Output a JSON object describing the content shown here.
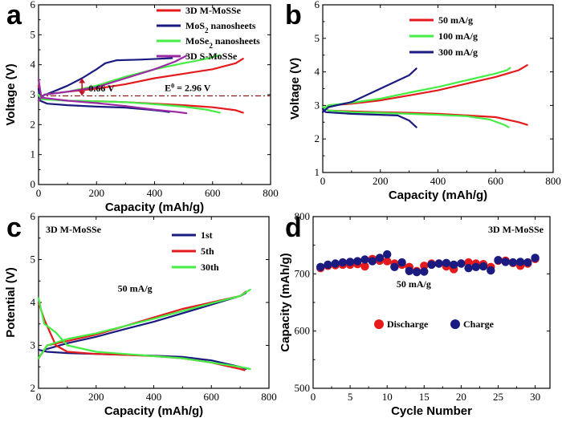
{
  "colors": {
    "red": "#e41a1c",
    "navy": "#1a1a80",
    "green": "#44ee44",
    "purple": "#9b2aa4",
    "refline": "#8b1a1a",
    "arrow": "#c0142b"
  },
  "chart_data": [
    {
      "panel": "a",
      "type": "line",
      "xlabel": "Capacity (mAh/g)",
      "ylabel": "Voltage (V)",
      "xlim": [
        0,
        800
      ],
      "ylim": [
        0,
        6
      ],
      "xticks": [
        0,
        200,
        400,
        600,
        800
      ],
      "yticks": [
        0,
        1,
        2,
        3,
        4,
        5,
        6
      ],
      "legend_position": "top-right",
      "annotations": {
        "gap_label": "0.66 V",
        "e0_label": "E",
        "e0_sup": "0",
        "e0_value": " = 2.96 V",
        "e0_value_v": 2.96
      },
      "series": [
        {
          "name": "3D M-MoSSe",
          "color": "red",
          "charge": [
            [
              0,
              2.8
            ],
            [
              20,
              3.0
            ],
            [
              100,
              3.1
            ],
            [
              200,
              3.2
            ],
            [
              300,
              3.35
            ],
            [
              400,
              3.55
            ],
            [
              500,
              3.7
            ],
            [
              600,
              3.85
            ],
            [
              680,
              4.05
            ],
            [
              705,
              4.2
            ]
          ],
          "discharge": [
            [
              0,
              3.3
            ],
            [
              5,
              2.95
            ],
            [
              30,
              2.85
            ],
            [
              100,
              2.8
            ],
            [
              200,
              2.78
            ],
            [
              300,
              2.75
            ],
            [
              400,
              2.7
            ],
            [
              500,
              2.65
            ],
            [
              600,
              2.58
            ],
            [
              680,
              2.48
            ],
            [
              705,
              2.4
            ]
          ]
        },
        {
          "name_main": "MoS",
          "name_sub": "2",
          "name_rest": " nanosheets",
          "color": "navy",
          "charge": [
            [
              0,
              2.8
            ],
            [
              10,
              2.95
            ],
            [
              50,
              3.1
            ],
            [
              100,
              3.3
            ],
            [
              150,
              3.55
            ],
            [
              200,
              3.85
            ],
            [
              230,
              4.05
            ],
            [
              270,
              4.15
            ],
            [
              350,
              4.17
            ],
            [
              420,
              4.2
            ],
            [
              460,
              4.22
            ]
          ],
          "discharge": [
            [
              0,
              3.2
            ],
            [
              5,
              2.8
            ],
            [
              30,
              2.7
            ],
            [
              100,
              2.65
            ],
            [
              200,
              2.6
            ],
            [
              300,
              2.57
            ],
            [
              380,
              2.5
            ],
            [
              430,
              2.45
            ],
            [
              450,
              2.42
            ]
          ]
        },
        {
          "name_main": "MoSe",
          "name_sub": "2",
          "name_rest": " nanosheets",
          "color": "green",
          "charge": [
            [
              0,
              2.8
            ],
            [
              20,
              3.0
            ],
            [
              100,
              3.1
            ],
            [
              200,
              3.3
            ],
            [
              300,
              3.6
            ],
            [
              400,
              3.85
            ],
            [
              500,
              4.05
            ],
            [
              580,
              4.2
            ],
            [
              625,
              4.32
            ]
          ],
          "discharge": [
            [
              0,
              3.0
            ],
            [
              10,
              2.85
            ],
            [
              100,
              2.8
            ],
            [
              200,
              2.78
            ],
            [
              300,
              2.75
            ],
            [
              400,
              2.68
            ],
            [
              500,
              2.6
            ],
            [
              580,
              2.5
            ],
            [
              625,
              2.4
            ]
          ]
        },
        {
          "name": "3D S-MoSSe",
          "color": "purple",
          "charge": [
            [
              0,
              2.8
            ],
            [
              20,
              3.0
            ],
            [
              100,
              3.1
            ],
            [
              200,
              3.25
            ],
            [
              300,
              3.55
            ],
            [
              400,
              3.85
            ],
            [
              470,
              4.1
            ],
            [
              510,
              4.3
            ]
          ],
          "discharge": [
            [
              0,
              3.5
            ],
            [
              10,
              2.9
            ],
            [
              100,
              2.8
            ],
            [
              200,
              2.72
            ],
            [
              300,
              2.62
            ],
            [
              400,
              2.5
            ],
            [
              480,
              2.42
            ],
            [
              510,
              2.38
            ]
          ]
        }
      ]
    },
    {
      "panel": "b",
      "type": "line",
      "xlabel": "Capacity (mAh/g)",
      "ylabel": "Voltage (V)",
      "xlim": [
        0,
        800
      ],
      "ylim": [
        1,
        6
      ],
      "xticks": [
        0,
        200,
        400,
        600,
        800
      ],
      "yticks": [
        1,
        2,
        3,
        4,
        5,
        6
      ],
      "legend_position": "top-right",
      "series": [
        {
          "name": "50 mA/g",
          "color": "red",
          "charge": [
            [
              0,
              2.9
            ],
            [
              20,
              3.0
            ],
            [
              100,
              3.05
            ],
            [
              200,
              3.15
            ],
            [
              300,
              3.3
            ],
            [
              400,
              3.45
            ],
            [
              500,
              3.65
            ],
            [
              600,
              3.85
            ],
            [
              680,
              4.05
            ],
            [
              710,
              4.2
            ]
          ],
          "discharge": [
            [
              0,
              2.95
            ],
            [
              20,
              2.85
            ],
            [
              100,
              2.82
            ],
            [
              200,
              2.8
            ],
            [
              300,
              2.78
            ],
            [
              400,
              2.75
            ],
            [
              500,
              2.7
            ],
            [
              600,
              2.65
            ],
            [
              680,
              2.5
            ],
            [
              710,
              2.42
            ]
          ]
        },
        {
          "name": "100 mA/g",
          "color": "green",
          "charge": [
            [
              0,
              2.9
            ],
            [
              20,
              3.0
            ],
            [
              100,
              3.08
            ],
            [
              200,
              3.2
            ],
            [
              300,
              3.38
            ],
            [
              400,
              3.55
            ],
            [
              500,
              3.75
            ],
            [
              600,
              3.95
            ],
            [
              640,
              4.05
            ],
            [
              650,
              4.12
            ]
          ],
          "discharge": [
            [
              0,
              2.95
            ],
            [
              20,
              2.85
            ],
            [
              100,
              2.8
            ],
            [
              200,
              2.78
            ],
            [
              300,
              2.75
            ],
            [
              400,
              2.72
            ],
            [
              500,
              2.68
            ],
            [
              580,
              2.58
            ],
            [
              630,
              2.42
            ],
            [
              645,
              2.35
            ]
          ]
        },
        {
          "name": "300 mA/g",
          "color": "navy",
          "charge": [
            [
              0,
              2.8
            ],
            [
              20,
              2.95
            ],
            [
              100,
              3.1
            ],
            [
              150,
              3.3
            ],
            [
              200,
              3.5
            ],
            [
              250,
              3.7
            ],
            [
              300,
              3.9
            ],
            [
              325,
              4.1
            ]
          ],
          "discharge": [
            [
              0,
              2.9
            ],
            [
              10,
              2.8
            ],
            [
              100,
              2.75
            ],
            [
              200,
              2.72
            ],
            [
              260,
              2.7
            ],
            [
              300,
              2.55
            ],
            [
              325,
              2.35
            ]
          ]
        }
      ]
    },
    {
      "panel": "c",
      "type": "line",
      "subtitle": "3D M-MoSSe",
      "rate_label": "50 mA/g",
      "xlabel": "Capacity (mAh/g)",
      "ylabel": "Potential (V)",
      "xlim": [
        0,
        800
      ],
      "ylim": [
        2,
        6
      ],
      "xticks": [
        0,
        200,
        400,
        600,
        800
      ],
      "yticks": [
        2,
        3,
        4,
        5,
        6
      ],
      "legend_position": "top-right",
      "series": [
        {
          "name": "1st",
          "color": "navy",
          "charge": [
            [
              0,
              2.7
            ],
            [
              20,
              2.9
            ],
            [
              100,
              3.05
            ],
            [
              200,
              3.2
            ],
            [
              300,
              3.38
            ],
            [
              400,
              3.55
            ],
            [
              500,
              3.75
            ],
            [
              600,
              3.95
            ],
            [
              700,
              4.15
            ],
            [
              720,
              4.22
            ]
          ],
          "discharge": [
            [
              0,
              2.9
            ],
            [
              30,
              2.85
            ],
            [
              100,
              2.82
            ],
            [
              200,
              2.8
            ],
            [
              300,
              2.78
            ],
            [
              400,
              2.76
            ],
            [
              500,
              2.73
            ],
            [
              600,
              2.65
            ],
            [
              700,
              2.5
            ],
            [
              720,
              2.45
            ]
          ]
        },
        {
          "name": "5th",
          "color": "red",
          "charge": [
            [
              0,
              2.7
            ],
            [
              30,
              3.0
            ],
            [
              100,
              3.1
            ],
            [
              200,
              3.25
            ],
            [
              300,
              3.45
            ],
            [
              400,
              3.65
            ],
            [
              500,
              3.85
            ],
            [
              600,
              4.0
            ],
            [
              700,
              4.15
            ],
            [
              720,
              4.25
            ]
          ],
          "discharge": [
            [
              0,
              4.0
            ],
            [
              20,
              3.6
            ],
            [
              60,
              3.0
            ],
            [
              100,
              2.85
            ],
            [
              200,
              2.8
            ],
            [
              300,
              2.78
            ],
            [
              400,
              2.75
            ],
            [
              500,
              2.7
            ],
            [
              600,
              2.6
            ],
            [
              700,
              2.45
            ],
            [
              715,
              2.42
            ]
          ]
        },
        {
          "name": "30th",
          "color": "green",
          "charge": [
            [
              0,
              2.7
            ],
            [
              30,
              3.0
            ],
            [
              100,
              3.15
            ],
            [
              200,
              3.28
            ],
            [
              300,
              3.45
            ],
            [
              400,
              3.62
            ],
            [
              500,
              3.8
            ],
            [
              600,
              3.98
            ],
            [
              700,
              4.15
            ],
            [
              735,
              4.3
            ]
          ],
          "discharge": [
            [
              0,
              4.1
            ],
            [
              20,
              3.5
            ],
            [
              60,
              3.3
            ],
            [
              100,
              3.0
            ],
            [
              200,
              2.85
            ],
            [
              300,
              2.8
            ],
            [
              400,
              2.75
            ],
            [
              500,
              2.7
            ],
            [
              600,
              2.6
            ],
            [
              700,
              2.5
            ],
            [
              735,
              2.45
            ]
          ]
        }
      ]
    },
    {
      "panel": "d",
      "type": "scatter",
      "subtitle": "3D M-MoSSe",
      "rate_label": "50 mA/g",
      "xlabel": "Cycle Number",
      "ylabel": "Capacity (mAh/g)",
      "xlim": [
        0,
        32
      ],
      "ylim": [
        500,
        800
      ],
      "xticks": [
        0,
        5,
        10,
        15,
        20,
        25,
        30
      ],
      "yticks": [
        500,
        600,
        700,
        800
      ],
      "legend_position": "bottom-center",
      "x": [
        1,
        2,
        3,
        4,
        5,
        6,
        7,
        8,
        9,
        10,
        11,
        12,
        13,
        14,
        15,
        16,
        17,
        18,
        19,
        20,
        21,
        22,
        23,
        24,
        25,
        26,
        27,
        28,
        29,
        30
      ],
      "series": [
        {
          "name": "Discharge",
          "color": "red",
          "values": [
            710,
            714,
            715,
            716,
            716,
            717,
            713,
            726,
            723,
            722,
            718,
            716,
            712,
            705,
            714,
            718,
            718,
            713,
            708,
            718,
            720,
            718,
            717,
            712,
            723,
            723,
            719,
            714,
            718,
            726
          ]
        },
        {
          "name": "Charge",
          "color": "navy",
          "values": [
            712,
            716,
            718,
            720,
            721,
            722,
            725,
            722,
            728,
            734,
            712,
            720,
            705,
            703,
            704,
            716,
            718,
            719,
            716,
            718,
            710,
            712,
            713,
            706,
            724,
            721,
            720,
            721,
            720,
            728
          ]
        }
      ]
    }
  ]
}
